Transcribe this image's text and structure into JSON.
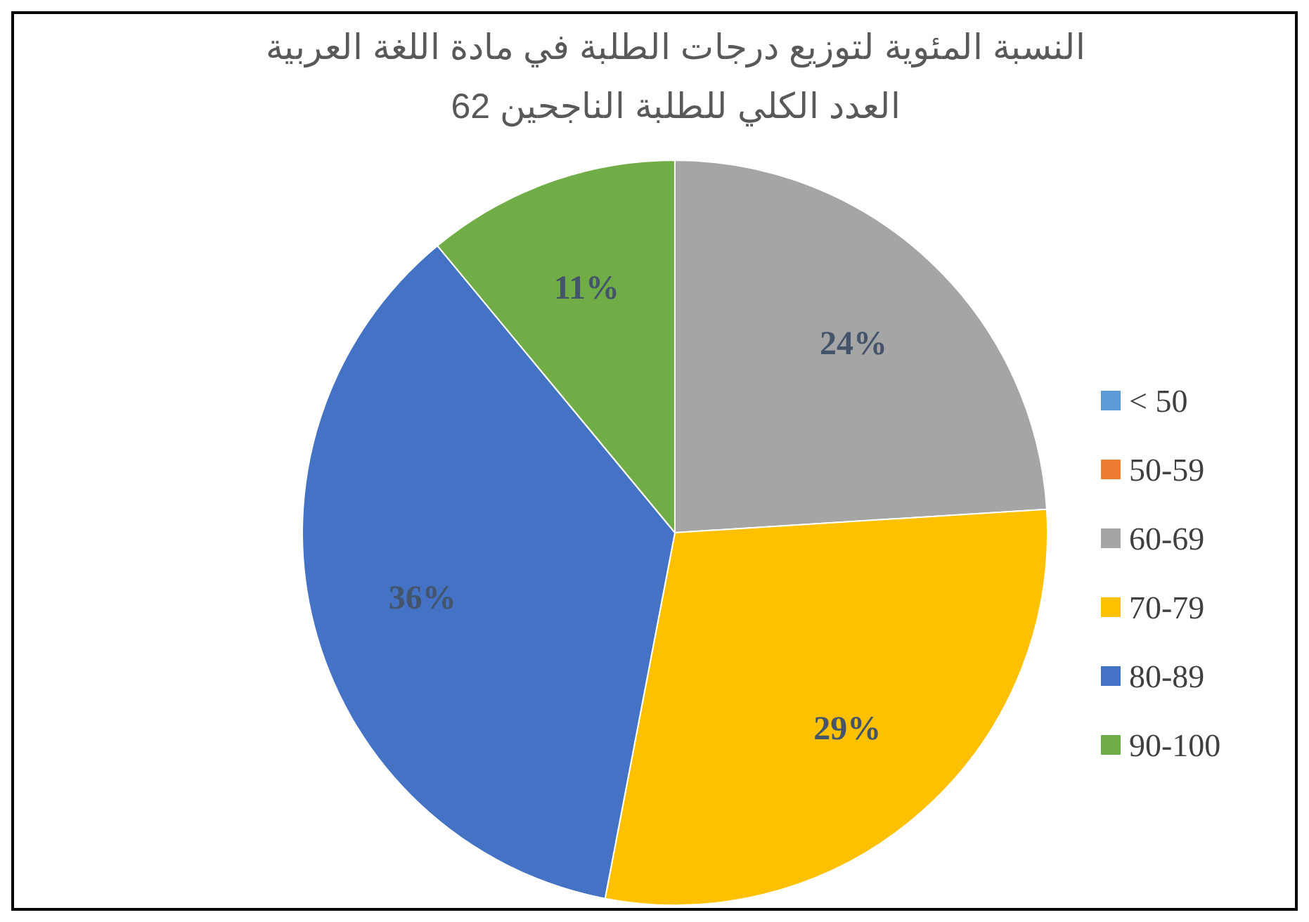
{
  "chart_data": {
    "type": "pie",
    "title": "النسبة المئوية لتوزيع درجات الطلبة في مادة اللغة العربية",
    "subtitle": "العدد الكلي للطلبة الناجحين 62",
    "categories": [
      "< 50",
      "50-59",
      "60-69",
      "70-79",
      "80-89",
      "90-100"
    ],
    "values": [
      0,
      0,
      24,
      29,
      36,
      11
    ],
    "value_labels": [
      null,
      null,
      "24%",
      "29%",
      "36%",
      "11%"
    ],
    "colors": [
      "#5b9bd5",
      "#ed7d31",
      "#a5a5a5",
      "#ffc000",
      "#4472c4",
      "#70ad47"
    ],
    "legend": "right"
  }
}
